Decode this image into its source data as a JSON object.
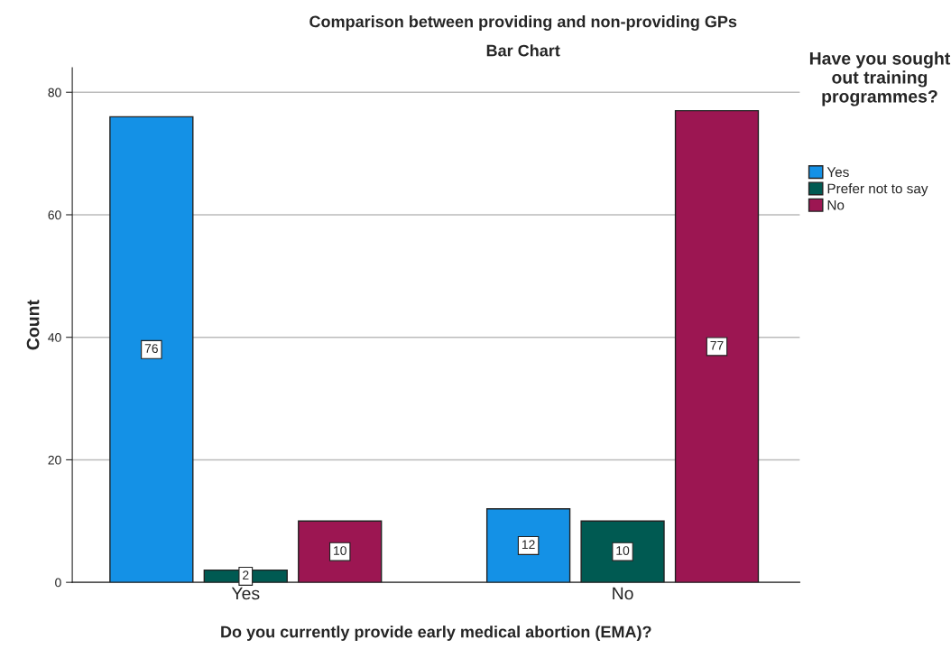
{
  "chart_data": {
    "type": "bar",
    "title": "Comparison between providing and non-providing GPs",
    "subtitle": "Bar Chart",
    "xlabel": "Do you currently provide early medical abortion (EMA)?",
    "ylabel": "Count",
    "legend_title": "Have you sought out training programmes?",
    "categories": [
      "Yes",
      "No"
    ],
    "series": [
      {
        "name": "Yes",
        "color": "#1491e6",
        "values": [
          76,
          12
        ]
      },
      {
        "name": "Prefer not to say",
        "color": "#005a52",
        "values": [
          2,
          10
        ]
      },
      {
        "name": "No",
        "color": "#9c1652",
        "values": [
          10,
          77
        ]
      }
    ],
    "ylim": [
      0,
      84
    ],
    "yticks": [
      0,
      20,
      40,
      60,
      80
    ],
    "grid": "y",
    "legend": "top right",
    "data_labels": true
  }
}
